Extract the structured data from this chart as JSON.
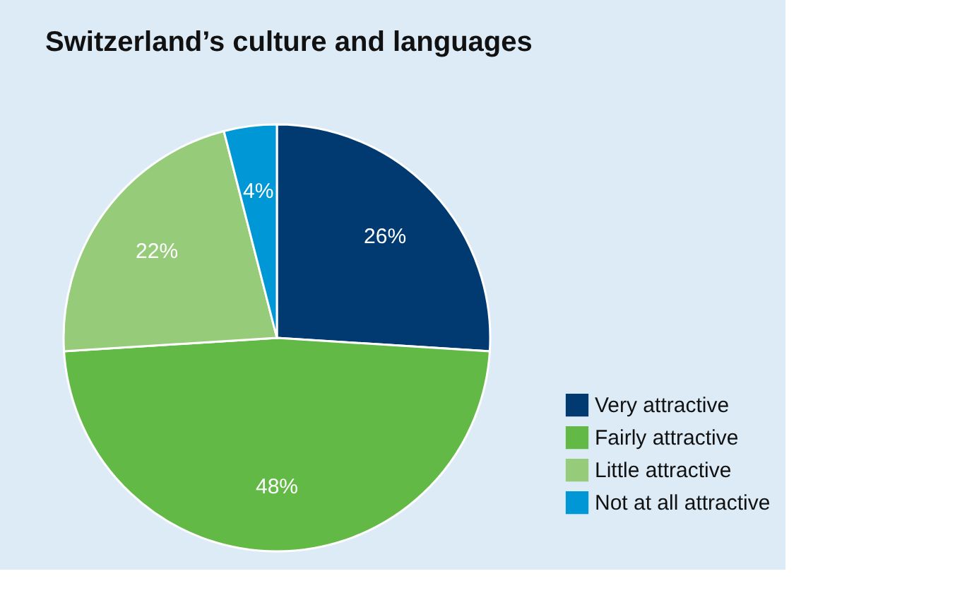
{
  "chart_data": {
    "type": "pie",
    "title": "Switzerland’s culture and languages",
    "categories": [
      "Very attractive",
      "Fairly attractive",
      "Little attractive",
      "Not at all attractive"
    ],
    "values": [
      26,
      48,
      22,
      4
    ],
    "colors": [
      "#003a70",
      "#62b946",
      "#96cb7a",
      "#0097d7"
    ],
    "value_labels": [
      "26%",
      "48%",
      "22%",
      "4%"
    ],
    "legend": "bottom right"
  }
}
